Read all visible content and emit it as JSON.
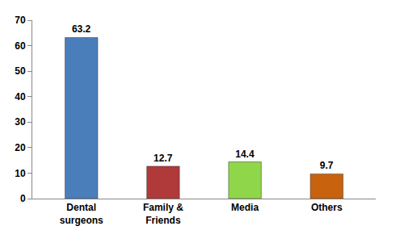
{
  "chart_data": {
    "type": "bar",
    "categories": [
      "Dental surgeons",
      "Family & Friends",
      "Media",
      "Others"
    ],
    "values": [
      63.2,
      12.7,
      14.4,
      9.7
    ],
    "colors": [
      "#4a7ebb",
      "#b03a3a",
      "#8fd64a",
      "#c8620e"
    ],
    "ylim": [
      0,
      70
    ],
    "yticks": [
      0,
      10,
      20,
      30,
      40,
      50,
      60,
      70
    ],
    "grid": false,
    "data_labels": true
  }
}
